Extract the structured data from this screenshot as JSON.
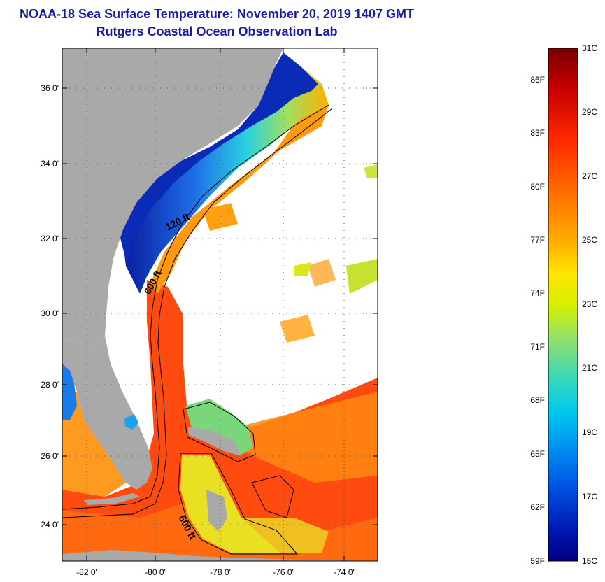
{
  "header": {
    "title": "NOAA-18 Sea Surface Temperature:  November 20, 2019 1407 GMT",
    "subtitle": "Rutgers Coastal Ocean Observation Lab"
  },
  "map": {
    "lat_labels": [
      "36 0'",
      "34 0'",
      "32 0'",
      "30 0'",
      "28 0'",
      "26 0'",
      "24 0'"
    ],
    "lon_labels": [
      "-82 0'",
      "-80 0'",
      "-78 0'",
      "-76 0'",
      "-74 0'"
    ],
    "contour_labels": [
      "120 ft",
      "600 ft",
      "600 ft"
    ]
  },
  "colorbar": {
    "fahrenheit_labels": [
      "86F",
      "83F",
      "80F",
      "77F",
      "74F",
      "71F",
      "68F",
      "65F",
      "62F",
      "59F"
    ],
    "celsius_labels": [
      "31C",
      "29C",
      "27C",
      "25C",
      "23C",
      "21C",
      "19C",
      "17C",
      "15C"
    ],
    "colors": [
      "#7a0000",
      "#c80000",
      "#ff2a00",
      "#ff7a00",
      "#ffb000",
      "#ffe600",
      "#d4f000",
      "#8fe070",
      "#3cd8b4",
      "#00c8f0",
      "#0090f0",
      "#0050e0",
      "#0018b0",
      "#000080"
    ]
  },
  "colors": {
    "land": "#a9a9a9",
    "cloud": "#ffffff",
    "title": "#1a1aa8"
  }
}
